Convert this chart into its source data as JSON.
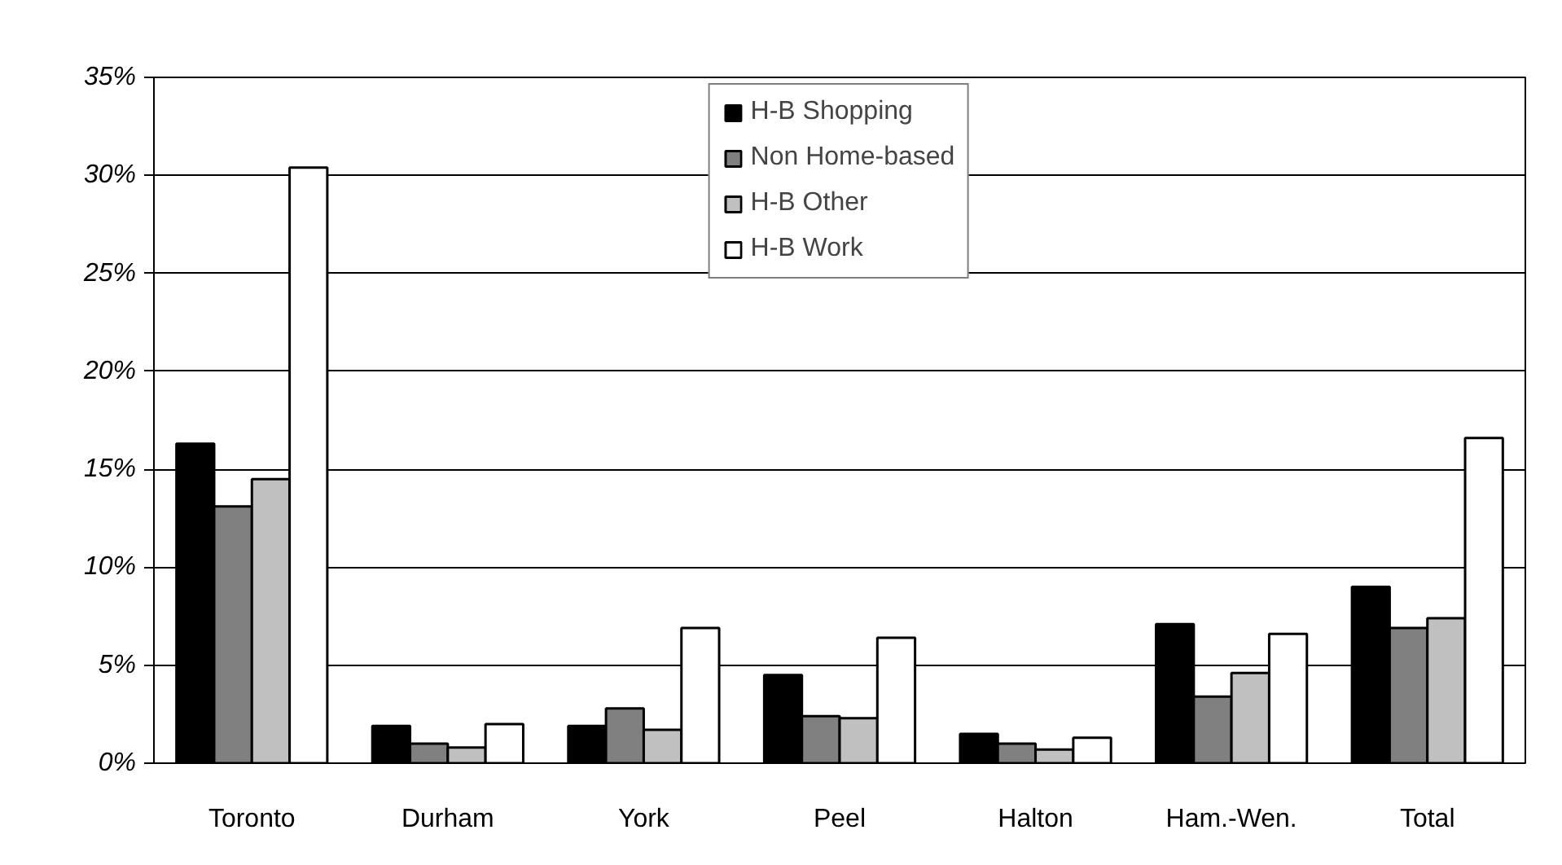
{
  "chart_data": {
    "type": "bar",
    "categories": [
      "Toronto",
      "Durham",
      "York",
      "Peel",
      "Halton",
      "Ham.-Wen.",
      "Total"
    ],
    "series": [
      {
        "name": "H-B Shopping",
        "color": "#000000",
        "values": [
          16.3,
          1.9,
          1.9,
          4.5,
          1.5,
          7.1,
          9.0
        ]
      },
      {
        "name": "Non Home-based",
        "color": "#808080",
        "values": [
          13.1,
          1.0,
          2.8,
          2.4,
          1.0,
          3.4,
          6.9
        ]
      },
      {
        "name": "H-B Other",
        "color": "#c0c0c0",
        "values": [
          14.5,
          0.8,
          1.7,
          2.3,
          0.7,
          4.6,
          7.4
        ]
      },
      {
        "name": "H-B Work",
        "color": "#ffffff",
        "values": [
          30.4,
          2.0,
          6.9,
          6.4,
          1.3,
          6.6,
          16.6
        ]
      }
    ],
    "ylim": [
      0,
      35
    ],
    "yticks": [
      {
        "value": 0,
        "label": "0%"
      },
      {
        "value": 5,
        "label": "5%"
      },
      {
        "value": 10,
        "label": "10%"
      },
      {
        "value": 15,
        "label": "15%"
      },
      {
        "value": 20,
        "label": "20%"
      },
      {
        "value": 25,
        "label": "25%"
      },
      {
        "value": 30,
        "label": "30%"
      },
      {
        "value": 35,
        "label": "35%"
      }
    ],
    "grid": "y",
    "legend": "top"
  }
}
